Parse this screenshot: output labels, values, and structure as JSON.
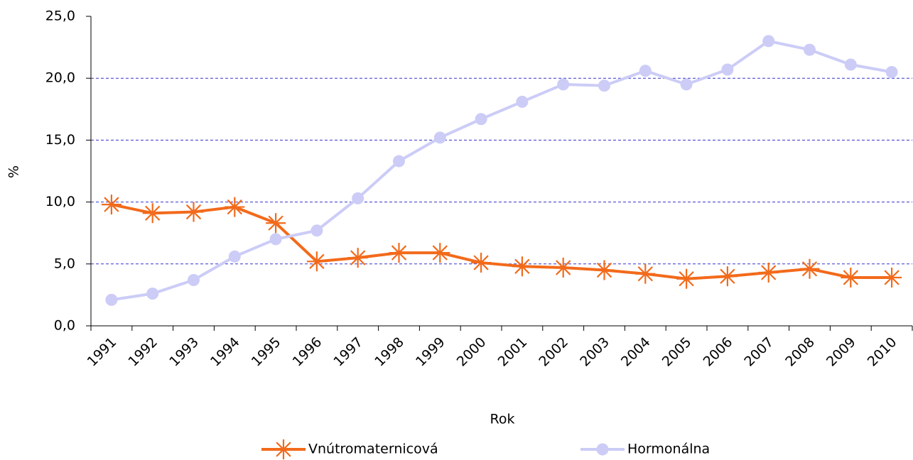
{
  "chart_data": {
    "type": "line",
    "x_label": "Rok",
    "y_label": "%",
    "categories": [
      "1991",
      "1992",
      "1993",
      "1994",
      "1995",
      "1996",
      "1997",
      "1998",
      "1999",
      "2000",
      "2001",
      "2002",
      "2003",
      "2004",
      "2005",
      "2006",
      "2007",
      "2008",
      "2009",
      "2010"
    ],
    "series": [
      {
        "name": "Vnútromaternicová",
        "color": "#f26a1b",
        "marker": "asterisk",
        "values": [
          9.8,
          9.1,
          9.2,
          9.6,
          8.3,
          5.2,
          5.5,
          5.9,
          5.9,
          5.1,
          4.8,
          4.7,
          4.5,
          4.2,
          3.8,
          4.0,
          4.3,
          4.6,
          3.9,
          3.9
        ]
      },
      {
        "name": "Hormonálna",
        "color": "#ccccf7",
        "marker": "circle",
        "values": [
          2.1,
          2.6,
          3.7,
          5.6,
          7.0,
          7.7,
          10.3,
          13.3,
          15.2,
          16.7,
          18.1,
          19.5,
          19.4,
          20.6,
          19.5,
          20.7,
          23.0,
          22.3,
          21.1,
          20.5
        ]
      }
    ],
    "ylim": [
      0,
      25
    ],
    "yticks": [
      {
        "value": 0,
        "label": "0,0"
      },
      {
        "value": 5,
        "label": "5,0"
      },
      {
        "value": 10,
        "label": "10,0"
      },
      {
        "value": 15,
        "label": "15,0"
      },
      {
        "value": 20,
        "label": "20,0"
      },
      {
        "value": 25,
        "label": "25,0"
      }
    ],
    "grid": true,
    "legend": "bottom"
  }
}
